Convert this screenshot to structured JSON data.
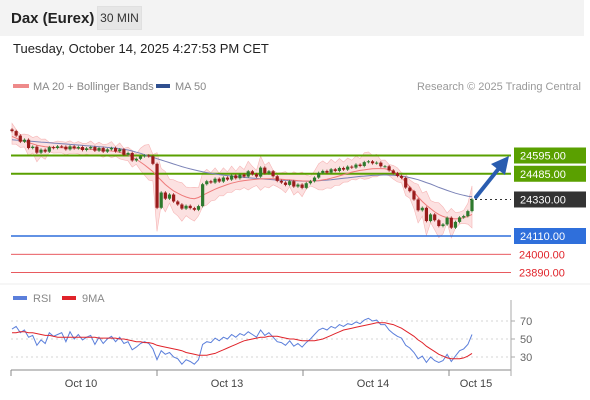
{
  "header": {
    "title": "Dax (Eurex)",
    "timeframe": "30 MIN",
    "timestamp": "Tuesday, October 14, 2025 4:27:53 PM CET"
  },
  "legend": {
    "ma20_label": "MA 20 + Bollinger Bands",
    "ma50_label": "MA 50",
    "credit": "Research © 2025 Trading Central",
    "rsi_label": "RSI",
    "ma9_label": "9MA"
  },
  "colors": {
    "resistance": "#5aa000",
    "support": "#2f6fdb",
    "target_red": "#e0232a",
    "current": "#333333",
    "candle_up": "#2e7a2e",
    "candle_down": "#9a1c1c",
    "bollinger_fill": "#fbd7d7",
    "ma20": "#ee7a7a",
    "ma50": "#7b83b7",
    "rsi": "#5b7fdb",
    "rsi_ma": "#e0232a",
    "arrow": "#2a5db0"
  },
  "chart_data": [
    {
      "type": "candlestick",
      "x_labels": [
        "Oct 10",
        "Oct 13",
        "Oct 14",
        "Oct 15"
      ],
      "ylim": [
        23860,
        24820
      ],
      "levels": [
        {
          "name": "resistance",
          "value": 24595.0,
          "label": "24595.00"
        },
        {
          "name": "resistance",
          "value": 24485.0,
          "label": "24485.00"
        },
        {
          "name": "current",
          "value": 24330.0,
          "label": "24330.00"
        },
        {
          "name": "support",
          "value": 24110.0,
          "label": "24110.00"
        },
        {
          "name": "target",
          "value": 24000.0,
          "label": "24000.00"
        },
        {
          "name": "target",
          "value": 23890.0,
          "label": "23890.00"
        }
      ],
      "close": [
        24742,
        24715,
        24678,
        24690,
        24640,
        24648,
        24612,
        24630,
        24618,
        24645,
        24640,
        24650,
        24648,
        24632,
        24650,
        24638,
        24646,
        24628,
        24638,
        24646,
        24624,
        24640,
        24618,
        24632,
        24640,
        24620,
        24632,
        24600,
        24610,
        24565,
        24575,
        24590,
        24595,
        24590,
        24545,
        24280,
        24372,
        24335,
        24360,
        24318,
        24300,
        24275,
        24292,
        24278,
        24268,
        24290,
        24422,
        24440,
        24432,
        24455,
        24438,
        24462,
        24450,
        24475,
        24458,
        24480,
        24468,
        24500,
        24482,
        24468,
        24522,
        24488,
        24500,
        24470,
        24442,
        24432,
        24418,
        24440,
        24408,
        24420,
        24400,
        24428,
        24440,
        24462,
        24490,
        24502,
        24492,
        24512,
        24502,
        24520,
        24510,
        24528,
        24522,
        24540,
        24532,
        24555,
        24560,
        24548,
        24552,
        24530,
        24530,
        24505,
        24488,
        24472,
        24460,
        24402,
        24380,
        24330,
        24265,
        24280,
        24200,
        24240,
        24205,
        24170,
        24180,
        24220,
        24160,
        24195,
        24222,
        24230,
        24260,
        24330
      ],
      "ma20": [
        24710,
        24700,
        24688,
        24680,
        24672,
        24665,
        24657,
        24652,
        24648,
        24646,
        24644,
        24643,
        24642,
        24641,
        24641,
        24640,
        24638,
        24636,
        24634,
        24632,
        24630,
        24628,
        24627,
        24625,
        24622,
        24619,
        24614,
        24606,
        24598,
        24585,
        24572,
        24555,
        24538,
        24518,
        24498,
        24470,
        24445,
        24420,
        24400,
        24382,
        24368,
        24355,
        24345,
        24338,
        24335,
        24342,
        24355,
        24368,
        24380,
        24392,
        24402,
        24411,
        24420,
        24428,
        24434,
        24440,
        24444,
        24447,
        24450,
        24452,
        24454,
        24455,
        24455,
        24455,
        24454,
        24452,
        24450,
        24448,
        24446,
        24444,
        24442,
        24441,
        24441,
        24442,
        24444,
        24448,
        24452,
        24458,
        24465,
        24472,
        24480,
        24488,
        24495,
        24500,
        24505,
        24508,
        24512,
        24515,
        24516,
        24516,
        24515,
        24510,
        24500,
        24485,
        24462,
        24435,
        24405,
        24375,
        24345,
        24318,
        24295,
        24275,
        24255,
        24240,
        24228,
        24220,
        24215,
        24213,
        24215,
        24220,
        24228,
        24240
      ],
      "ma50": [
        24690,
        24688,
        24686,
        24684,
        24682,
        24680,
        24678,
        24676,
        24674,
        24672,
        24670,
        24668,
        24666,
        24664,
        24662,
        24660,
        24658,
        24656,
        24654,
        24652,
        24650,
        24648,
        24646,
        24644,
        24642,
        24640,
        24636,
        24632,
        24628,
        24622,
        24615,
        24608,
        24600,
        24592,
        24584,
        24576,
        24568,
        24560,
        24552,
        24544,
        24536,
        24528,
        24521,
        24514,
        24508,
        24502,
        24497,
        24492,
        24488,
        24484,
        24480,
        24477,
        24474,
        24471,
        24468,
        24466,
        24463,
        24461,
        24459,
        24457,
        24455,
        24453,
        24451,
        24449,
        24447,
        24446,
        24445,
        24444,
        24443,
        24442,
        24441,
        24441,
        24441,
        24442,
        24443,
        24445,
        24447,
        24449,
        24452,
        24455,
        24458,
        24460,
        24463,
        24466,
        24469,
        24471,
        24473,
        24475,
        24476,
        24477,
        24478,
        24477,
        24476,
        24474,
        24471,
        24467,
        24462,
        24456,
        24449,
        24441,
        24432,
        24423,
        24413,
        24403,
        24394,
        24385,
        24376,
        24368,
        24361,
        24355,
        24350,
        24346
      ],
      "rsi": [
        61,
        64,
        57,
        60,
        52,
        54,
        43,
        49,
        45,
        57,
        53,
        55,
        57,
        47,
        58,
        50,
        55,
        49,
        52,
        54,
        44,
        52,
        45,
        50,
        53,
        47,
        52,
        45,
        47,
        38,
        41,
        45,
        47,
        45,
        39,
        27,
        37,
        33,
        35,
        30,
        28,
        22,
        27,
        25,
        22,
        27,
        44,
        47,
        46,
        51,
        48,
        52,
        50,
        55,
        52,
        56,
        54,
        58,
        55,
        52,
        60,
        54,
        57,
        52,
        47,
        46,
        43,
        48,
        42,
        45,
        41,
        46,
        50,
        55,
        60,
        62,
        60,
        64,
        62,
        66,
        64,
        67,
        66,
        69,
        67,
        71,
        73,
        70,
        71,
        66,
        66,
        60,
        56,
        53,
        51,
        43,
        40,
        35,
        28,
        31,
        24,
        30,
        26,
        24,
        26,
        33,
        25,
        31,
        37,
        39,
        44,
        55
      ],
      "rsi_ma": [
        57,
        57,
        58,
        58,
        57,
        57,
        56,
        55,
        54,
        54,
        53,
        52,
        52,
        52,
        52,
        52,
        52,
        52,
        52,
        52,
        52,
        51,
        51,
        51,
        51,
        51,
        50,
        50,
        49,
        48,
        47,
        47,
        46,
        46,
        45,
        43,
        42,
        41,
        40,
        39,
        38,
        37,
        35,
        34,
        33,
        32,
        32,
        32,
        33,
        34,
        36,
        38,
        40,
        42,
        44,
        46,
        48,
        49,
        50,
        51,
        52,
        52,
        53,
        53,
        53,
        52,
        51,
        50,
        50,
        49,
        48,
        48,
        48,
        48,
        49,
        50,
        52,
        54,
        56,
        58,
        60,
        61,
        62,
        63,
        64,
        65,
        66,
        67,
        68,
        68,
        68,
        67,
        66,
        64,
        62,
        59,
        56,
        53,
        49,
        46,
        42,
        39,
        36,
        33,
        31,
        29,
        28,
        28,
        28,
        29,
        31,
        34
      ],
      "rsi_ticks": [
        "70",
        "50",
        "30"
      ]
    }
  ]
}
